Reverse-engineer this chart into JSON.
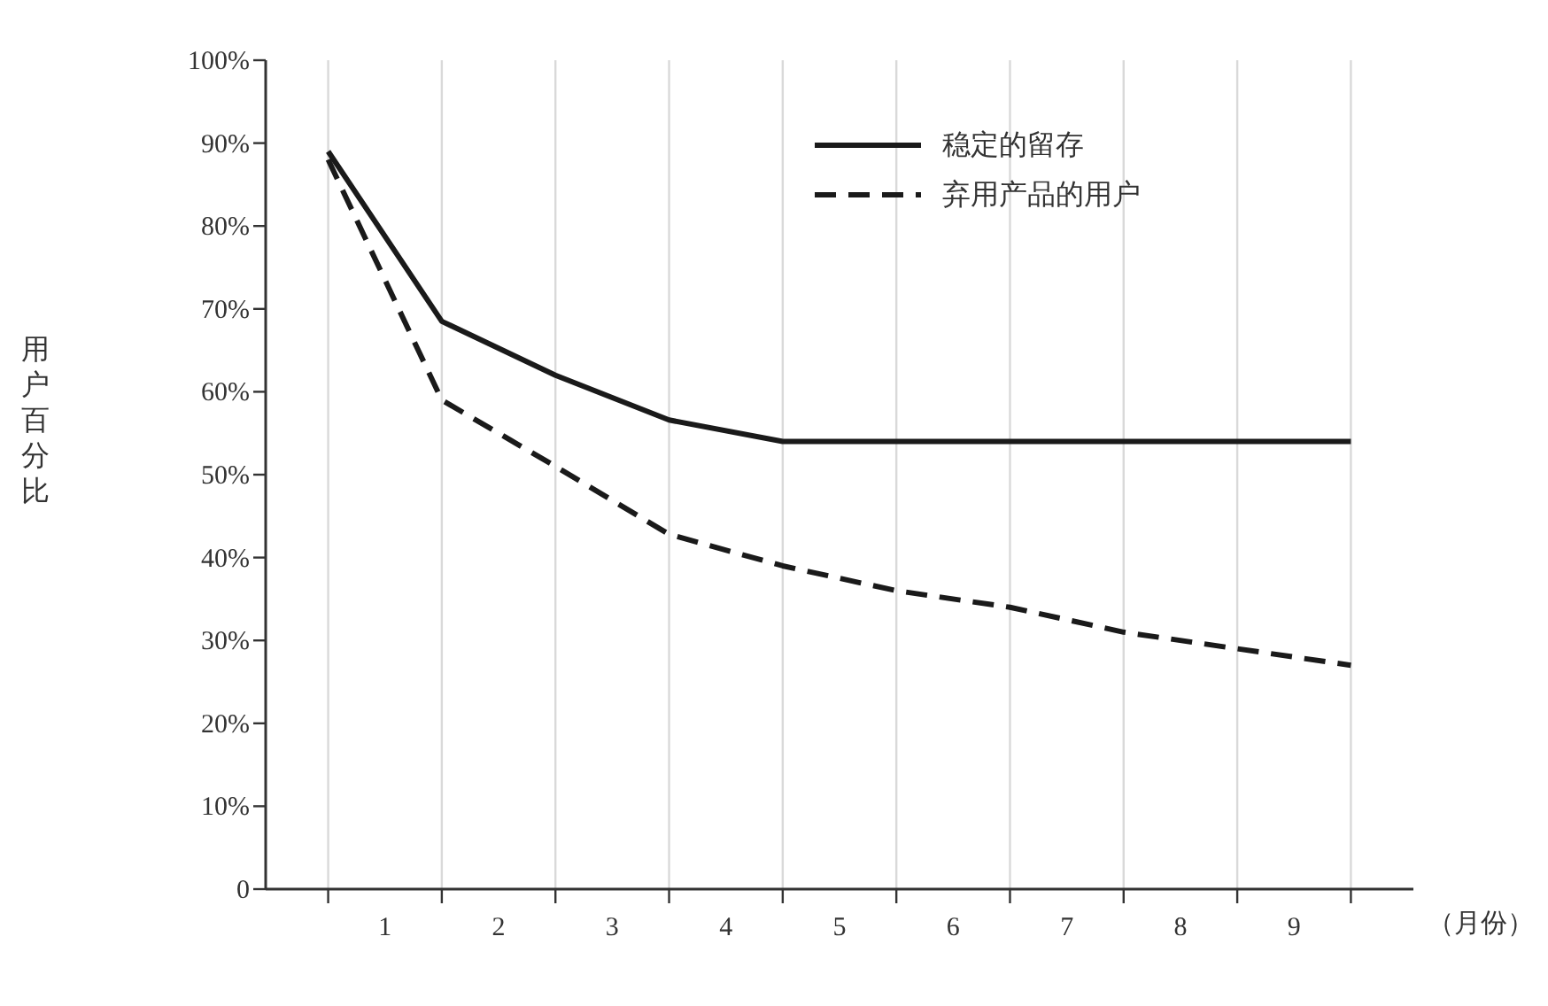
{
  "chart_data": {
    "type": "line",
    "xlabel": "（月份）",
    "ylabel": "用户百分比",
    "x": [
      0,
      1,
      2,
      3,
      4,
      5,
      6,
      7,
      8,
      9
    ],
    "series": [
      {
        "name": "稳定的留存",
        "color": "#1a1a1a",
        "line_style": "solid",
        "values": [
          89,
          68.5,
          62,
          56.6,
          54,
          54,
          54,
          54,
          54,
          54
        ]
      },
      {
        "name": "弃用产品的用户",
        "color": "#1a1a1a",
        "line_style": "dashed",
        "values": [
          88,
          59,
          51,
          42.8,
          39,
          36,
          34,
          31,
          29,
          27
        ]
      }
    ],
    "xlim": [
      -0.55,
      9.55
    ],
    "xticks": [
      {
        "value": 0,
        "label": null
      },
      {
        "value": 0.5,
        "label": "1"
      },
      {
        "value": 1,
        "label": null
      },
      {
        "value": 1.5,
        "label": "2"
      },
      {
        "value": 2,
        "label": null
      },
      {
        "value": 2.5,
        "label": "3"
      },
      {
        "value": 3,
        "label": null
      },
      {
        "value": 3.5,
        "label": "4"
      },
      {
        "value": 4,
        "label": null
      },
      {
        "value": 4.5,
        "label": "5"
      },
      {
        "value": 5,
        "label": null
      },
      {
        "value": 5.5,
        "label": "6"
      },
      {
        "value": 6,
        "label": null
      },
      {
        "value": 6.5,
        "label": "7"
      },
      {
        "value": 7,
        "label": null
      },
      {
        "value": 7.5,
        "label": "8"
      },
      {
        "value": 8,
        "label": null
      },
      {
        "value": 8.5,
        "label": "9"
      },
      {
        "value": 9,
        "label": null
      }
    ],
    "ylim": [
      0,
      100
    ],
    "yticks": [
      0,
      {
        "value": 10,
        "label": "10%"
      },
      {
        "value": 20,
        "label": "20%"
      },
      {
        "value": 30,
        "label": "30%"
      },
      {
        "value": 40,
        "label": "40%"
      },
      {
        "value": 50,
        "label": "50%"
      },
      {
        "value": 60,
        "label": "60%"
      },
      {
        "value": 70,
        "label": "70%"
      },
      {
        "value": 80,
        "label": "80%"
      },
      {
        "value": 90,
        "label": "90%"
      },
      {
        "value": 100,
        "label": "100%"
      }
    ],
    "grid": "x",
    "legend": "top right",
    "marker": "none"
  }
}
